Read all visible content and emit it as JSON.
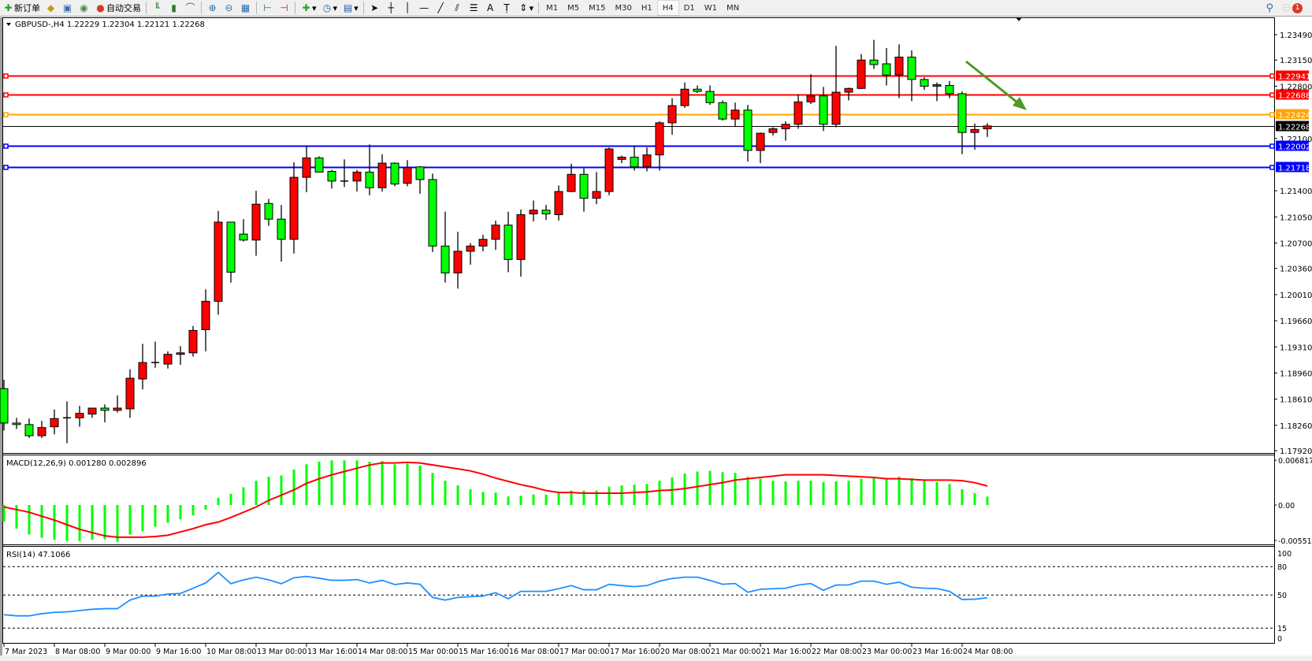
{
  "toolbar": {
    "new_order": "新订单",
    "auto_trading": "自动交易",
    "timeframes": [
      "M1",
      "M5",
      "M15",
      "M30",
      "H1",
      "H4",
      "D1",
      "W1",
      "MN"
    ],
    "active_timeframe": "H4",
    "notification_count": "1"
  },
  "main_pane": {
    "header": "GBPUSD-,H4  1.22229 1.22304 1.22121 1.22268",
    "price_ticks": [
      "1.23490",
      "1.23150",
      "1.22800",
      "1.22100",
      "1.21400",
      "1.21050",
      "1.20700",
      "1.20360",
      "1.20010",
      "1.19660",
      "1.19310",
      "1.18960",
      "1.18610",
      "1.18260",
      "1.17920"
    ],
    "horizontal_lines": [
      {
        "price": "1.22941",
        "color": "#ff0000"
      },
      {
        "price": "1.22688",
        "color": "#ff0000"
      },
      {
        "price": "1.22424",
        "color": "#ffa500"
      },
      {
        "price": "1.22002",
        "color": "#0000ff"
      },
      {
        "price": "1.21718",
        "color": "#0000ff"
      }
    ],
    "bid_line": {
      "price": "1.22268",
      "color": "#000000"
    },
    "bull_color": "#ff0000",
    "bear_color": "#00ff00",
    "arrow_color": "#4c9a2a"
  },
  "macd_pane": {
    "header": "MACD(12,26,9) 0.001280 0.002896",
    "ticks": [
      "0.006817",
      "0.00",
      "-0.005518"
    ]
  },
  "rsi_pane": {
    "header": "RSI(14) 47.1066",
    "ticks": [
      "100",
      "80",
      "50",
      "15",
      "0"
    ]
  },
  "time_labels": [
    "7 Mar 2023",
    "8 Mar 08:00",
    "9 Mar 00:00",
    "9 Mar 16:00",
    "10 Mar 08:00",
    "13 Mar 00:00",
    "13 Mar 16:00",
    "14 Mar 08:00",
    "15 Mar 00:00",
    "15 Mar 16:00",
    "16 Mar 08:00",
    "17 Mar 00:00",
    "17 Mar 16:00",
    "20 Mar 08:00",
    "21 Mar 00:00",
    "21 Mar 16:00",
    "22 Mar 08:00",
    "23 Mar 00:00",
    "23 Mar 16:00",
    "24 Mar 08:00"
  ],
  "chart_data": [
    {
      "type": "candlestick",
      "symbol": "GBPUSD-",
      "timeframe": "H4",
      "ylim": [
        1.1792,
        1.236
      ],
      "ohlc_fields": [
        "open",
        "high",
        "low",
        "close"
      ],
      "candles": [
        [
          1.1875,
          1.1887,
          1.1819,
          1.1829
        ],
        [
          1.1829,
          1.1836,
          1.1821,
          1.1827
        ],
        [
          1.1827,
          1.1835,
          1.1809,
          1.1812
        ],
        [
          1.1812,
          1.1832,
          1.1809,
          1.1823
        ],
        [
          1.1824,
          1.1847,
          1.1814,
          1.1835
        ],
        [
          1.1836,
          1.1858,
          1.1802,
          1.1836
        ],
        [
          1.1836,
          1.1852,
          1.1824,
          1.1842
        ],
        [
          1.1841,
          1.1849,
          1.1836,
          1.1849
        ],
        [
          1.1849,
          1.1854,
          1.183,
          1.1846
        ],
        [
          1.1846,
          1.1866,
          1.1843,
          1.1849
        ],
        [
          1.1848,
          1.1901,
          1.1836,
          1.1889
        ],
        [
          1.1888,
          1.1935,
          1.1874,
          1.191
        ],
        [
          1.191,
          1.1938,
          1.1903,
          1.191
        ],
        [
          1.1908,
          1.1925,
          1.1902,
          1.1921
        ],
        [
          1.1921,
          1.1932,
          1.1907,
          1.1923
        ],
        [
          1.1923,
          1.1959,
          1.1918,
          1.1953
        ],
        [
          1.1954,
          1.2008,
          1.1925,
          1.1992
        ],
        [
          1.1992,
          1.2113,
          1.1974,
          1.2098
        ],
        [
          1.2098,
          1.2098,
          1.2017,
          1.2031
        ],
        [
          1.2082,
          1.2102,
          1.2072,
          1.2074
        ],
        [
          1.2074,
          1.214,
          1.2053,
          1.2122
        ],
        [
          1.2123,
          1.2129,
          1.2093,
          1.2102
        ],
        [
          1.2102,
          1.2121,
          1.2045,
          1.2075
        ],
        [
          1.2075,
          1.2178,
          1.2056,
          1.2158
        ],
        [
          1.2158,
          1.22,
          1.2138,
          1.2184
        ],
        [
          1.2184,
          1.2186,
          1.2165,
          1.2165
        ],
        [
          1.2166,
          1.2168,
          1.2143,
          1.2153
        ],
        [
          1.2153,
          1.2182,
          1.2145,
          1.2153
        ],
        [
          1.2153,
          1.2168,
          1.2139,
          1.2165
        ],
        [
          1.2165,
          1.2202,
          1.2134,
          1.2144
        ],
        [
          1.2144,
          1.2189,
          1.2139,
          1.2177
        ],
        [
          1.2177,
          1.2178,
          1.2146,
          1.2149
        ],
        [
          1.215,
          1.2181,
          1.2146,
          1.2171
        ],
        [
          1.2172,
          1.2173,
          1.2136,
          1.2155
        ],
        [
          1.2155,
          1.2163,
          1.2058,
          1.2066
        ],
        [
          1.2066,
          1.2112,
          1.2017,
          1.203
        ],
        [
          1.203,
          1.2085,
          1.2009,
          1.2059
        ],
        [
          1.2059,
          1.207,
          1.2041,
          1.2066
        ],
        [
          1.2066,
          1.2081,
          1.2059,
          1.2075
        ],
        [
          1.2075,
          1.21,
          1.2061,
          1.2094
        ],
        [
          1.2094,
          1.2112,
          1.2031,
          1.2048
        ],
        [
          1.2048,
          1.2115,
          1.2025,
          1.2108
        ],
        [
          1.2109,
          1.2127,
          1.2099,
          1.2114
        ],
        [
          1.2114,
          1.2121,
          1.2101,
          1.2109
        ],
        [
          1.2108,
          1.2147,
          1.21,
          1.2139
        ],
        [
          1.2139,
          1.2176,
          1.2138,
          1.2162
        ],
        [
          1.2162,
          1.217,
          1.2112,
          1.213
        ],
        [
          1.213,
          1.2165,
          1.2122,
          1.2139
        ],
        [
          1.2139,
          1.2198,
          1.2134,
          1.2196
        ],
        [
          1.2182,
          1.2187,
          1.2177,
          1.2185
        ],
        [
          1.2185,
          1.22,
          1.2167,
          1.2172
        ],
        [
          1.2172,
          1.2198,
          1.2166,
          1.2188
        ],
        [
          1.2188,
          1.2233,
          1.2167,
          1.2231
        ],
        [
          1.2231,
          1.2264,
          1.2215,
          1.2254
        ],
        [
          1.2254,
          1.2285,
          1.2251,
          1.2276
        ],
        [
          1.2276,
          1.2281,
          1.2271,
          1.2273
        ],
        [
          1.2273,
          1.2281,
          1.2255,
          1.2258
        ],
        [
          1.2258,
          1.2261,
          1.2234,
          1.2236
        ],
        [
          1.2236,
          1.2258,
          1.2226,
          1.2248
        ],
        [
          1.2248,
          1.2255,
          1.2179,
          1.2194
        ],
        [
          1.2194,
          1.2218,
          1.2177,
          1.2217
        ],
        [
          1.2218,
          1.2225,
          1.2214,
          1.2223
        ],
        [
          1.2223,
          1.2233,
          1.2207,
          1.2229
        ],
        [
          1.2229,
          1.2269,
          1.2223,
          1.2259
        ],
        [
          1.2259,
          1.2296,
          1.2256,
          1.2267
        ],
        [
          1.2267,
          1.2279,
          1.222,
          1.2229
        ],
        [
          1.2229,
          1.2334,
          1.2225,
          1.2272
        ],
        [
          1.2272,
          1.2278,
          1.2261,
          1.2277
        ],
        [
          1.2277,
          1.2323,
          1.2276,
          1.2315
        ],
        [
          1.2315,
          1.2342,
          1.2303,
          1.2309
        ],
        [
          1.231,
          1.2331,
          1.2281,
          1.2295
        ],
        [
          1.2295,
          1.2336,
          1.2264,
          1.2319
        ],
        [
          1.2319,
          1.2328,
          1.226,
          1.2289
        ],
        [
          1.2289,
          1.2292,
          1.2275,
          1.228
        ],
        [
          1.228,
          1.2285,
          1.226,
          1.2282
        ],
        [
          1.2281,
          1.2287,
          1.2264,
          1.227
        ],
        [
          1.227,
          1.2273,
          1.2189,
          1.2218
        ],
        [
          1.2218,
          1.223,
          1.2195,
          1.2222
        ],
        [
          1.22229,
          1.22304,
          1.22121,
          1.22268
        ]
      ]
    },
    {
      "type": "bar+line",
      "indicator": "MACD(12,26,9)",
      "ylim": [
        -0.005518,
        0.006817
      ],
      "histogram": [
        -0.0025,
        -0.0036,
        -0.0045,
        -0.005,
        -0.0053,
        -0.0055,
        -0.0055,
        -0.0053,
        -0.0052,
        -0.0056,
        -0.0045,
        -0.004,
        -0.0033,
        -0.0027,
        -0.0022,
        -0.0016,
        -0.0007,
        0.0011,
        0.0017,
        0.0027,
        0.0037,
        0.0043,
        0.0045,
        0.0054,
        0.0062,
        0.0066,
        0.0068,
        0.0068,
        0.0068,
        0.0066,
        0.0067,
        0.0062,
        0.0063,
        0.006,
        0.0049,
        0.0037,
        0.003,
        0.0024,
        0.002,
        0.0019,
        0.0013,
        0.0014,
        0.0016,
        0.0016,
        0.0018,
        0.0022,
        0.0022,
        0.0022,
        0.0028,
        0.003,
        0.0031,
        0.0032,
        0.0037,
        0.0042,
        0.0048,
        0.0051,
        0.0052,
        0.005,
        0.0049,
        0.0043,
        0.004,
        0.0037,
        0.0036,
        0.0037,
        0.0037,
        0.0035,
        0.0036,
        0.0037,
        0.004,
        0.0042,
        0.0041,
        0.0043,
        0.0041,
        0.0038,
        0.0035,
        0.0032,
        0.0024,
        0.0018,
        0.00128
      ],
      "signal": [
        -0.0003,
        -0.0007,
        -0.0011,
        -0.0017,
        -0.0023,
        -0.003,
        -0.0037,
        -0.0042,
        -0.0047,
        -0.0049,
        -0.0049,
        -0.0049,
        -0.0048,
        -0.0046,
        -0.0041,
        -0.0036,
        -0.003,
        -0.0026,
        -0.0019,
        -0.0011,
        -0.0003,
        0.0007,
        0.0015,
        0.0023,
        0.0033,
        0.004,
        0.0046,
        0.0051,
        0.0056,
        0.0061,
        0.0064,
        0.0064,
        0.0065,
        0.0064,
        0.0061,
        0.0058,
        0.0055,
        0.0052,
        0.0047,
        0.0041,
        0.0036,
        0.0031,
        0.0027,
        0.0022,
        0.0019,
        0.0019,
        0.0018,
        0.0018,
        0.0018,
        0.0018,
        0.0019,
        0.002,
        0.0022,
        0.0023,
        0.0025,
        0.0028,
        0.0031,
        0.0034,
        0.0038,
        0.004,
        0.0042,
        0.0044,
        0.0046,
        0.0046,
        0.0046,
        0.0046,
        0.0045,
        0.0044,
        0.0043,
        0.0042,
        0.004,
        0.004,
        0.0039,
        0.0038,
        0.0038,
        0.0038,
        0.0037,
        0.0034,
        0.002896
      ]
    },
    {
      "type": "line",
      "indicator": "RSI(14)",
      "ylim": [
        0,
        100
      ],
      "levels": [
        80,
        50,
        15
      ],
      "values": [
        29.2,
        28,
        28,
        30.3,
        31.7,
        32.2,
        33.6,
        35,
        35.6,
        35.6,
        44.7,
        48.9,
        48.9,
        51.1,
        51.7,
        57.2,
        62.8,
        73.9,
        62,
        66.1,
        68.9,
        66.1,
        62,
        68.3,
        69.7,
        67.8,
        65.6,
        65.6,
        66.4,
        62.8,
        65.6,
        61.1,
        62.8,
        61.4,
        47.5,
        44.7,
        47.5,
        48.3,
        48.9,
        52.5,
        46.1,
        53.9,
        53.9,
        53.9,
        56.7,
        60,
        55.6,
        55.6,
        61.4,
        60,
        58.9,
        60,
        64.7,
        67.5,
        68.9,
        68.9,
        65.6,
        61.4,
        62.2,
        53,
        56.1,
        56.7,
        57.2,
        60.6,
        62.2,
        55,
        60.6,
        60.8,
        64.7,
        64.7,
        61.4,
        63.6,
        58.3,
        57.2,
        56.9,
        53.9,
        45.3,
        45.6,
        47.1066
      ]
    }
  ]
}
